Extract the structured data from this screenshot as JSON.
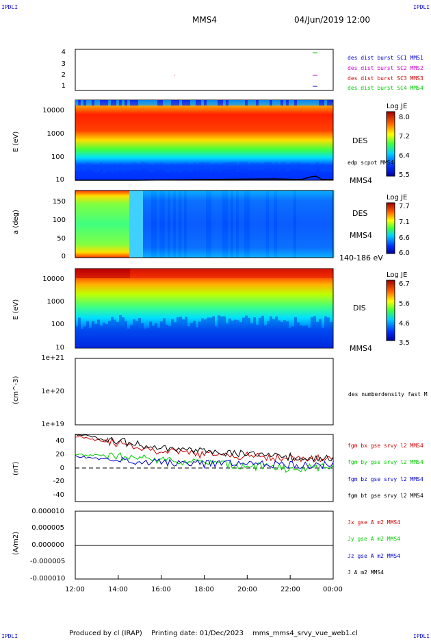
{
  "header": {
    "corner_left": "IPDLI",
    "corner_right": "IPDLI",
    "spacecraft": "MMS4",
    "datetime": "04/Jun/2019 12:00"
  },
  "panels": {
    "dist": {
      "yticks": [
        "4",
        "3",
        "2",
        "1"
      ],
      "legend": [
        {
          "text": "des dist burst SC1 MMS1",
          "color": "#0000cc"
        },
        {
          "text": "des dist burst SC2 MMS2",
          "color": "#cc00cc"
        },
        {
          "text": "des dist burst SC3 MMS3",
          "color": "#cc0000"
        },
        {
          "text": "des dist burst SC4 MMS4",
          "color": "#00cc00"
        }
      ]
    },
    "des_energy": {
      "ylabel": "E (eV)",
      "yticks": [
        "10000",
        "1000",
        "100",
        "10"
      ],
      "species": "DES",
      "overlay": "edp scpot MMS4",
      "sc": "MMS4",
      "cbar": {
        "title": "Log JE",
        "ticks": [
          "8.0",
          "7.2",
          "6.4",
          "5.5"
        ]
      }
    },
    "pitch": {
      "ylabel": "a (deg)",
      "yticks": [
        "150",
        "100",
        "50",
        "0"
      ],
      "species": "DES",
      "sc": "MMS4",
      "range": "140-186 eV",
      "cbar": {
        "title": "Log JE",
        "ticks": [
          "7.7",
          "7.1",
          "6.6",
          "6.0"
        ]
      }
    },
    "dis_energy": {
      "ylabel": "E (eV)",
      "yticks": [
        "10000",
        "1000",
        "100",
        "10"
      ],
      "species": "DIS",
      "sc": "MMS4",
      "cbar": {
        "title": "Log JE",
        "ticks": [
          "6.7",
          "5.6",
          "4.6",
          "3.5"
        ]
      }
    },
    "density": {
      "ylabel": "(cm^-3)",
      "yticks": [
        "1e+21",
        "1e+20",
        "1e+19"
      ],
      "legend": "des numberdensity fast M"
    },
    "bfield": {
      "ylabel": "(nT)",
      "yticks": [
        "40",
        "20",
        "0",
        "-20",
        "-40"
      ],
      "legend": [
        {
          "text": "fgm bx gse srvy l2 MMS4",
          "color": "#cc0000"
        },
        {
          "text": "fgm by gse srvy l2 MMS4",
          "color": "#00cc00"
        },
        {
          "text": "fgm bz gse srvy l2 MMS4",
          "color": "#0000cc"
        },
        {
          "text": "fgm bt gse srvy l2 MMS4",
          "color": "#000000"
        }
      ]
    },
    "current": {
      "ylabel": "(A/m2)",
      "yticks": [
        "0.000010",
        "0.000005",
        "0.000000",
        "-0.000005",
        "-0.000010"
      ],
      "legend": [
        {
          "text": "Jx gse A m2 MMS4",
          "color": "#cc0000"
        },
        {
          "text": "Jy gse A m2 MMS4",
          "color": "#00cc00"
        },
        {
          "text": "Jz gse A m2 MMS4",
          "color": "#0000cc"
        },
        {
          "text": "J A m2 MMS4",
          "color": "#000000"
        }
      ]
    }
  },
  "xaxis": {
    "ticks": [
      "12:00",
      "14:00",
      "16:00",
      "18:00",
      "20:00",
      "22:00",
      "00:00"
    ]
  },
  "footer": {
    "produced": "Produced by cl (IRAP)",
    "printing": "Printing date: 01/Dec/2023",
    "file": "mms_mms4_srvy_vue_web1.cl"
  },
  "chart_data": {
    "type": "line",
    "title": "MMS4",
    "x": [
      "12:00",
      "14:00",
      "16:00",
      "18:00",
      "20:00",
      "22:00",
      "00:00"
    ],
    "xlabel": "",
    "ylabel": "(nT)",
    "ylim": [
      -50,
      50
    ],
    "series": [
      {
        "name": "fgm bx gse srvy l2 MMS4",
        "values": [
          48,
          37,
          25,
          20,
          18,
          15,
          13
        ],
        "color": "#cc0000"
      },
      {
        "name": "fgm by gse srvy l2 MMS4",
        "values": [
          20,
          17,
          12,
          8,
          3,
          -1,
          3
        ],
        "color": "#00cc00"
      },
      {
        "name": "fgm bz gse srvy l2 MMS4",
        "values": [
          18,
          10,
          8,
          6,
          6,
          4,
          5
        ],
        "color": "#0000cc"
      },
      {
        "name": "fgm bt gse srvy l2 MMS4",
        "values": [
          50,
          40,
          28,
          24,
          20,
          17,
          15
        ],
        "color": "#000000"
      }
    ],
    "grid": false
  }
}
